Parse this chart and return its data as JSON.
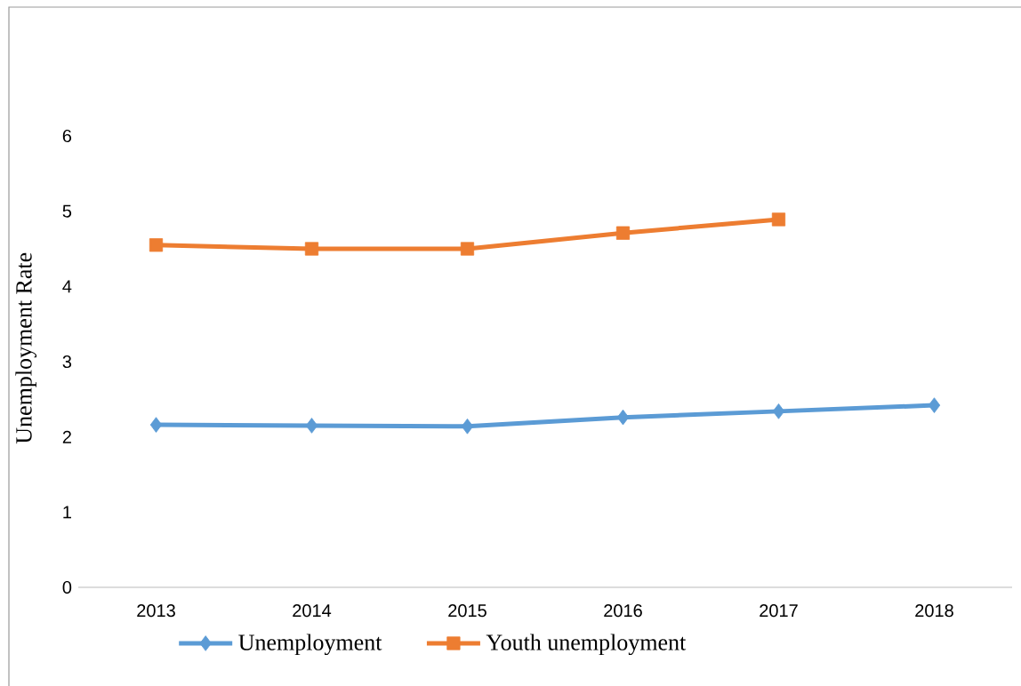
{
  "chart_data": {
    "type": "line",
    "ylabel": "Unemployment Rate",
    "categories": [
      "2013",
      "2014",
      "2015",
      "2016",
      "2017",
      "2018"
    ],
    "series": [
      {
        "name": "Unemployment",
        "color": "#5b9bd5",
        "marker": "diamond",
        "values": [
          2.16,
          2.15,
          2.14,
          2.26,
          2.34,
          2.42
        ]
      },
      {
        "name": "Youth unemployment",
        "color": "#ed7d31",
        "marker": "square",
        "values": [
          4.55,
          4.5,
          4.5,
          4.71,
          4.89,
          null
        ]
      }
    ],
    "ylim": [
      0,
      6
    ],
    "yticks": [
      0,
      1,
      2,
      3,
      4,
      5,
      6
    ],
    "grid": false,
    "legend": "bottom",
    "line_style": "solid"
  }
}
